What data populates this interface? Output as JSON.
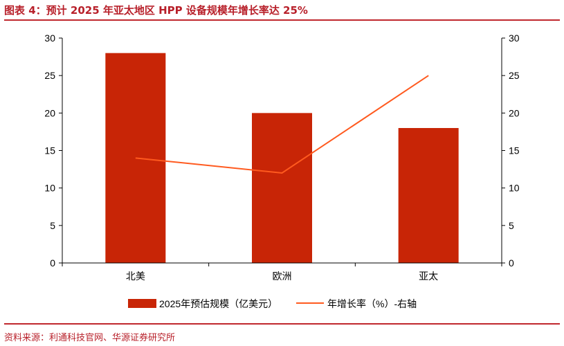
{
  "title": "图表 4：预计 2025 年亚太地区 HPP 设备规模年增长率达 25%",
  "source": "资料来源：利通科技官网、华源证券研究所",
  "chart_data": {
    "type": "bar+line",
    "categories": [
      "北美",
      "欧洲",
      "亚太"
    ],
    "series": [
      {
        "name": "2025年预估规模（亿美元）",
        "type": "bar",
        "axis": "left",
        "values": [
          28,
          20,
          18
        ],
        "color": "#c82506"
      },
      {
        "name": "年增长率（%）-右轴",
        "type": "line",
        "axis": "right",
        "values": [
          14,
          12,
          25
        ],
        "color": "#ff5a1f"
      }
    ],
    "ylim_left": [
      0,
      30
    ],
    "ylim_right": [
      0,
      30
    ],
    "yticks": [
      0,
      5,
      10,
      15,
      20,
      25,
      30
    ],
    "grid": false,
    "legend": "bottom"
  }
}
